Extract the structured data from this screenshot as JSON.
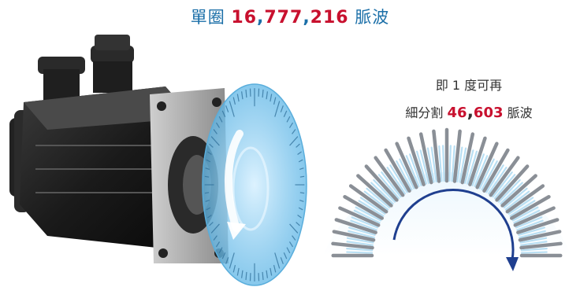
{
  "headline": {
    "prefix": "單圈",
    "value_part1": "16",
    "sep1": ",",
    "value_part2": "777",
    "sep2": ",",
    "value_part3": "216",
    "suffix": "脈波"
  },
  "subnote": {
    "line1": "即 1 度可再",
    "line2_prefix": "細分割",
    "value_part1": "46",
    "sep": ",",
    "value_part2": "603",
    "line2_suffix": "脈波"
  },
  "colors": {
    "title_blue": "#1b6fa8",
    "accent_red": "#c8102e",
    "disc_blue": "#8fcdf0",
    "arrow_blue": "#1f3f8f"
  }
}
